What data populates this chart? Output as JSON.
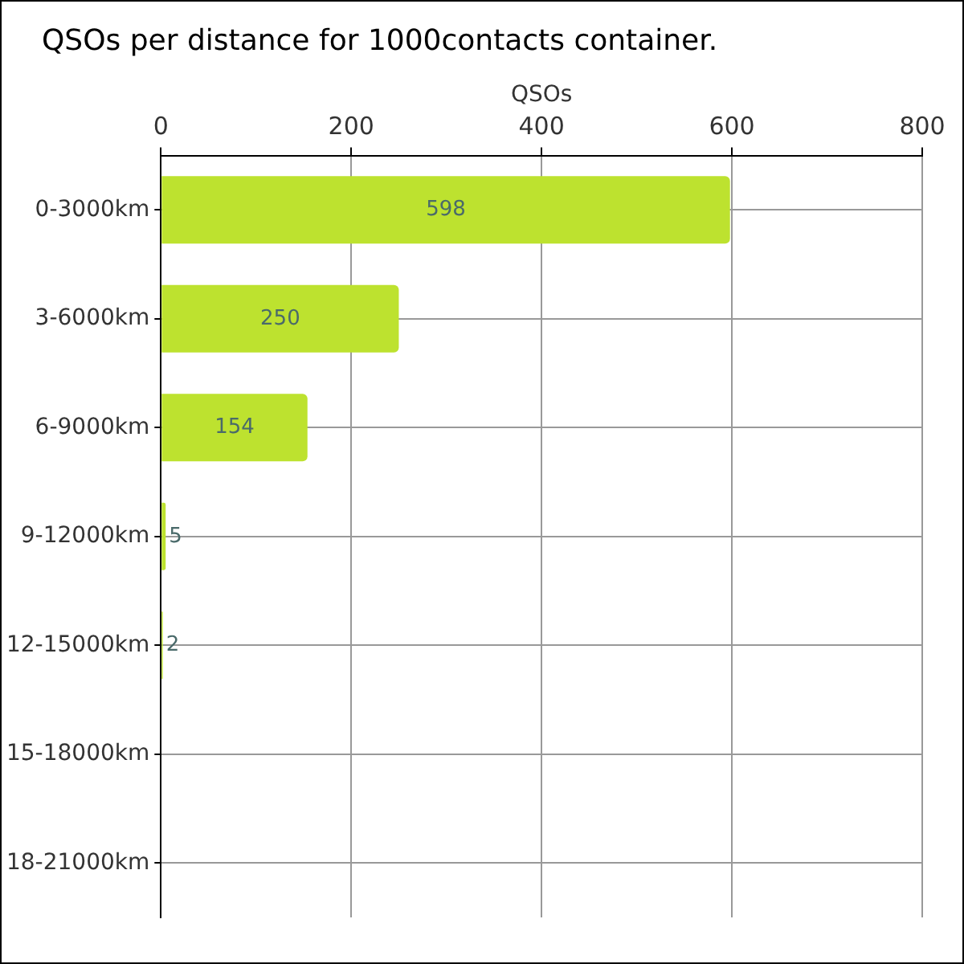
{
  "chart_data": {
    "type": "bar",
    "orientation": "horizontal",
    "title": "QSOs per distance for 1000contacts container.",
    "xlabel": "QSOs",
    "categories": [
      "0-3000km",
      "3-6000km",
      "6-9000km",
      "9-12000km",
      "12-15000km",
      "15-18000km",
      "18-21000km"
    ],
    "values": [
      598,
      250,
      154,
      5,
      2,
      0,
      0
    ],
    "color": "#bde22f",
    "value_labels": [
      "598",
      "250",
      "154",
      "5",
      "2",
      null,
      null
    ],
    "xlim": [
      0,
      800
    ],
    "xticks": [
      0,
      200,
      400,
      600,
      800
    ],
    "grid": true
  }
}
